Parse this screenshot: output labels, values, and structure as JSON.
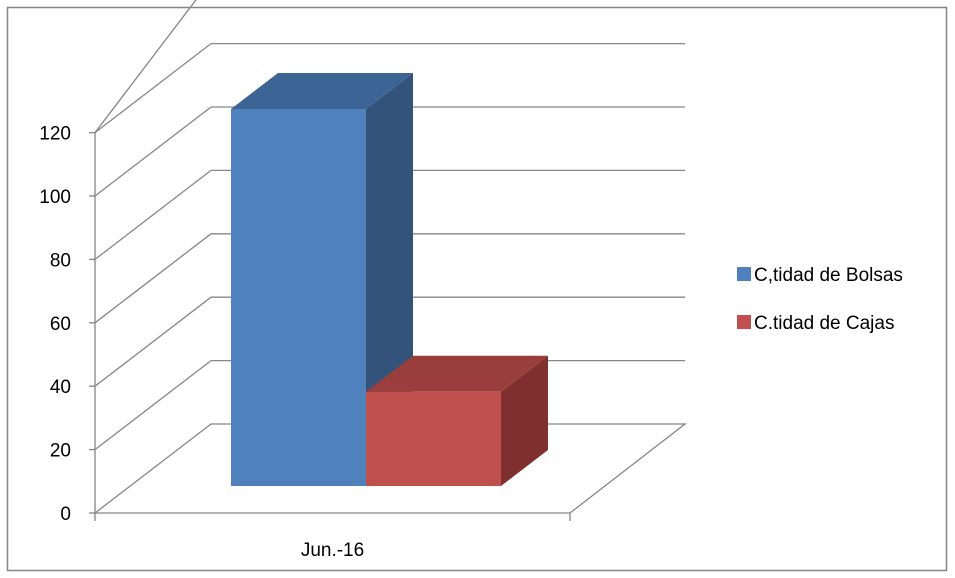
{
  "chart_data": {
    "type": "bar",
    "title": "",
    "xlabel": "",
    "ylabel": "",
    "categories": [
      "Jun.-16"
    ],
    "series": [
      {
        "name": "C,tidad de Bolsas",
        "values": [
          120
        ],
        "color": "#4F81BD",
        "top_color": "#3C6494",
        "side_color": "#34537A"
      },
      {
        "name": "C.tidad de Cajas",
        "values": [
          30
        ],
        "color": "#C0504D",
        "top_color": "#993E3C",
        "side_color": "#7F302E"
      }
    ],
    "ylim": [
      0,
      120
    ],
    "yticks": [
      0,
      20,
      40,
      60,
      80,
      100,
      120
    ],
    "grid": true,
    "legend": "right",
    "style": "3d-clustered-column",
    "gridline_color": "#868686",
    "border_color": "#868686"
  }
}
